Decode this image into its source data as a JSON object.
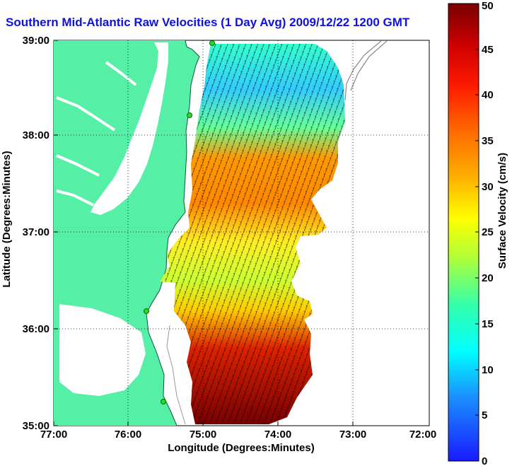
{
  "title": "Southern Mid-Atlantic Raw Velocities (1 Day Avg) 2009/12/22 1200 GMT",
  "axes": {
    "xlabel": "Longitude (Degrees:Minutes)",
    "ylabel": "Latitude (Degrees:Minutes)",
    "x_ticks": [
      "77:00",
      "76:00",
      "75:00",
      "74:00",
      "73:00",
      "72:00"
    ],
    "y_ticks": [
      "39:00",
      "38:00",
      "37:00",
      "36:00",
      "35:00"
    ]
  },
  "colorbar": {
    "label": "Surface Velocity (cm/s)",
    "range": [
      0,
      50
    ],
    "ticks": [
      "0",
      "5",
      "10",
      "15",
      "20",
      "25",
      "30",
      "35",
      "40",
      "45",
      "50"
    ]
  },
  "colors": {
    "land": "#55f0a5",
    "title": "#1010e0",
    "station": "#22dd22"
  }
}
